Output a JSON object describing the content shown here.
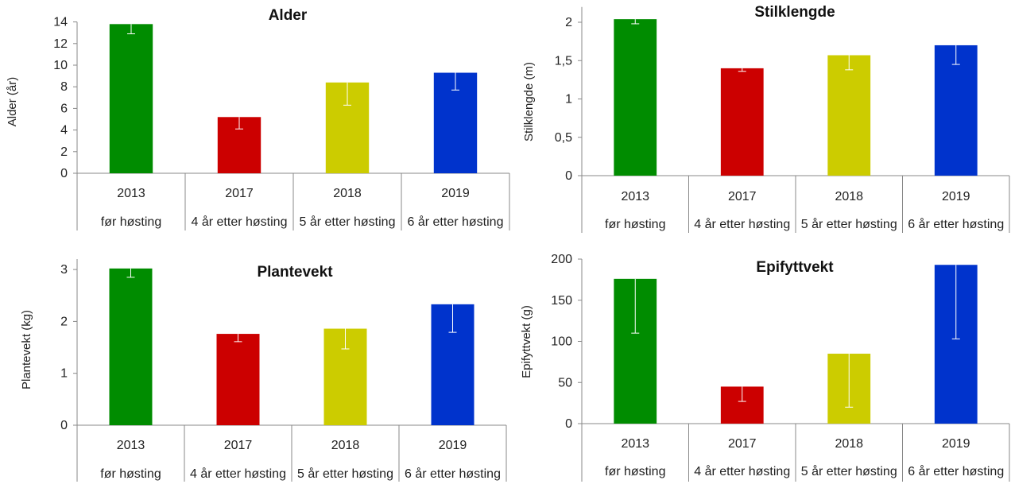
{
  "chart_data": [
    {
      "type": "bar",
      "title": "Alder",
      "ylabel": "Alder (år)",
      "xlabel": "",
      "ylim": [
        0,
        14
      ],
      "yticks": [
        0,
        2,
        4,
        6,
        8,
        10,
        12,
        14
      ],
      "ytick_labels": [
        "0",
        "2",
        "4",
        "6",
        "8",
        "10",
        "12",
        "14"
      ],
      "categories": [
        "2013",
        "2017",
        "2018",
        "2019"
      ],
      "sublabels": [
        "før høsting",
        "4 år etter høsting",
        "5 år etter høsting",
        "6 år etter høsting"
      ],
      "values": [
        13.8,
        5.2,
        8.4,
        9.3
      ],
      "error_low": [
        12.9,
        4.1,
        6.3,
        7.7
      ],
      "colors": [
        "#008c00",
        "#cc0000",
        "#cccc00",
        "#0033cc"
      ]
    },
    {
      "type": "bar",
      "title": "Stilklengde",
      "ylabel": "Stilklengde (m)",
      "xlabel": "",
      "ylim": [
        0,
        2.2
      ],
      "yticks": [
        0,
        0.5,
        1,
        1.5,
        2
      ],
      "ytick_labels": [
        "0",
        "0,5",
        "1",
        "1,5",
        "2"
      ],
      "categories": [
        "2013",
        "2017",
        "2018",
        "2019"
      ],
      "sublabels": [
        "før høsting",
        "4 år etter høsting",
        "5 år etter høsting",
        "6 år etter høsting"
      ],
      "values": [
        2.04,
        1.4,
        1.57,
        1.7
      ],
      "error_low": [
        1.98,
        1.36,
        1.38,
        1.45
      ],
      "colors": [
        "#008c00",
        "#cc0000",
        "#cccc00",
        "#0033cc"
      ]
    },
    {
      "type": "bar",
      "title": "Plantevekt",
      "ylabel": "Plantevekt (kg)",
      "xlabel": "",
      "ylim": [
        0,
        3.2
      ],
      "yticks": [
        0,
        1,
        2,
        3
      ],
      "ytick_labels": [
        "0",
        "1",
        "2",
        "3"
      ],
      "categories": [
        "2013",
        "2017",
        "2018",
        "2019"
      ],
      "sublabels": [
        "før høsting",
        "4 år etter høsting",
        "5 år etter høsting",
        "6 år etter høsting"
      ],
      "values": [
        3.02,
        1.76,
        1.86,
        2.33
      ],
      "error_low": [
        2.85,
        1.61,
        1.47,
        1.79
      ],
      "colors": [
        "#008c00",
        "#cc0000",
        "#cccc00",
        "#0033cc"
      ]
    },
    {
      "type": "bar",
      "title": "Epifyttvekt",
      "ylabel": "Epifyttvekt (g)",
      "xlabel": "",
      "ylim": [
        0,
        200
      ],
      "yticks": [
        0,
        50,
        100,
        150,
        200
      ],
      "ytick_labels": [
        "0",
        "50",
        "100",
        "150",
        "200"
      ],
      "categories": [
        "2013",
        "2017",
        "2018",
        "2019"
      ],
      "sublabels": [
        "før høsting",
        "4 år etter høsting",
        "5 år etter høsting",
        "6 år etter høsting"
      ],
      "values": [
        176,
        45,
        85,
        193
      ],
      "error_low": [
        110,
        27,
        20,
        103
      ],
      "colors": [
        "#008c00",
        "#cc0000",
        "#cccc00",
        "#0033cc"
      ]
    }
  ]
}
